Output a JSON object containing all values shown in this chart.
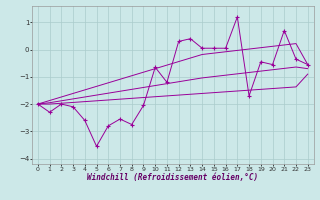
{
  "xlabel": "Windchill (Refroidissement éolien,°C)",
  "x_data": [
    0,
    1,
    2,
    3,
    4,
    5,
    6,
    7,
    8,
    9,
    10,
    11,
    12,
    13,
    14,
    15,
    16,
    17,
    18,
    19,
    20,
    21,
    22,
    23
  ],
  "y_main": [
    -2.0,
    -2.3,
    -2.0,
    -2.1,
    -2.6,
    -3.55,
    -2.8,
    -2.55,
    -2.75,
    -2.05,
    -0.65,
    -1.2,
    0.3,
    0.4,
    0.05,
    0.05,
    0.05,
    1.2,
    -1.7,
    -0.45,
    -0.55,
    0.7,
    -0.35,
    -0.55
  ],
  "y_line_top": [
    -2.0,
    -1.87,
    -1.74,
    -1.61,
    -1.48,
    -1.35,
    -1.22,
    -1.09,
    -0.96,
    -0.83,
    -0.7,
    -0.57,
    -0.44,
    -0.31,
    -0.18,
    -0.13,
    -0.08,
    -0.03,
    0.02,
    0.07,
    0.12,
    0.17,
    0.22,
    -0.55
  ],
  "y_line_mid": [
    -2.0,
    -1.95,
    -1.88,
    -1.81,
    -1.74,
    -1.67,
    -1.6,
    -1.53,
    -1.46,
    -1.39,
    -1.32,
    -1.25,
    -1.18,
    -1.11,
    -1.04,
    -0.99,
    -0.94,
    -0.89,
    -0.84,
    -0.79,
    -0.74,
    -0.69,
    -0.64,
    -0.7
  ],
  "y_line_bot": [
    -2.0,
    -2.0,
    -1.97,
    -1.94,
    -1.91,
    -1.88,
    -1.85,
    -1.82,
    -1.79,
    -1.76,
    -1.73,
    -1.7,
    -1.67,
    -1.64,
    -1.61,
    -1.58,
    -1.55,
    -1.52,
    -1.49,
    -1.46,
    -1.43,
    -1.4,
    -1.37,
    -0.9
  ],
  "line_color": "#990099",
  "bg_color": "#cce8e8",
  "grid_color": "#aacccc",
  "ylim": [
    -4.2,
    1.6
  ],
  "yticks": [
    -4,
    -3,
    -2,
    -1,
    0,
    1
  ],
  "xticks": [
    0,
    1,
    2,
    3,
    4,
    5,
    6,
    7,
    8,
    9,
    10,
    11,
    12,
    13,
    14,
    15,
    16,
    17,
    18,
    19,
    20,
    21,
    22,
    23
  ]
}
